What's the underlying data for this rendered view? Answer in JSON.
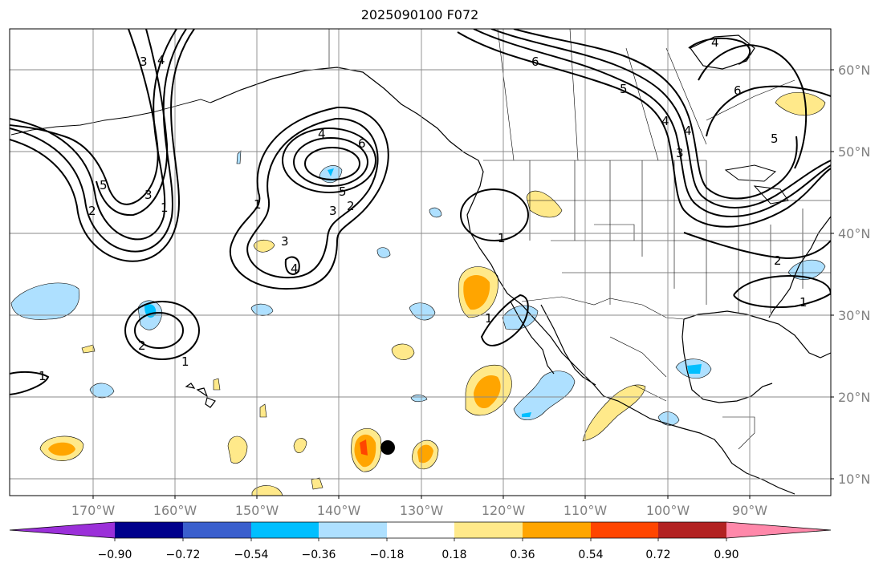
{
  "title": "2025090100 F072",
  "map": {
    "lon_labels": [
      "170°W",
      "160°W",
      "150°W",
      "140°W",
      "130°W",
      "120°W",
      "110°W",
      "100°W",
      "90°W"
    ],
    "lat_labels": [
      "60°N",
      "50°N",
      "40°N",
      "30°N",
      "20°N",
      "10°N"
    ],
    "contour_labels": [
      "1",
      "2",
      "3",
      "4",
      "5",
      "6"
    ],
    "marker": "storm-center"
  },
  "colorbar": {
    "ticks": [
      "−0.90",
      "−0.72",
      "−0.54",
      "−0.36",
      "−0.18",
      "0.18",
      "0.36",
      "0.54",
      "0.72",
      "0.90"
    ],
    "colors": [
      "#9b30d9",
      "#00008b",
      "#3a5fcd",
      "#00bfff",
      "#aee0ff",
      "#ffffff",
      "#ffe98a",
      "#ffa500",
      "#ff4500",
      "#b22222",
      "#ff88aa"
    ]
  }
}
